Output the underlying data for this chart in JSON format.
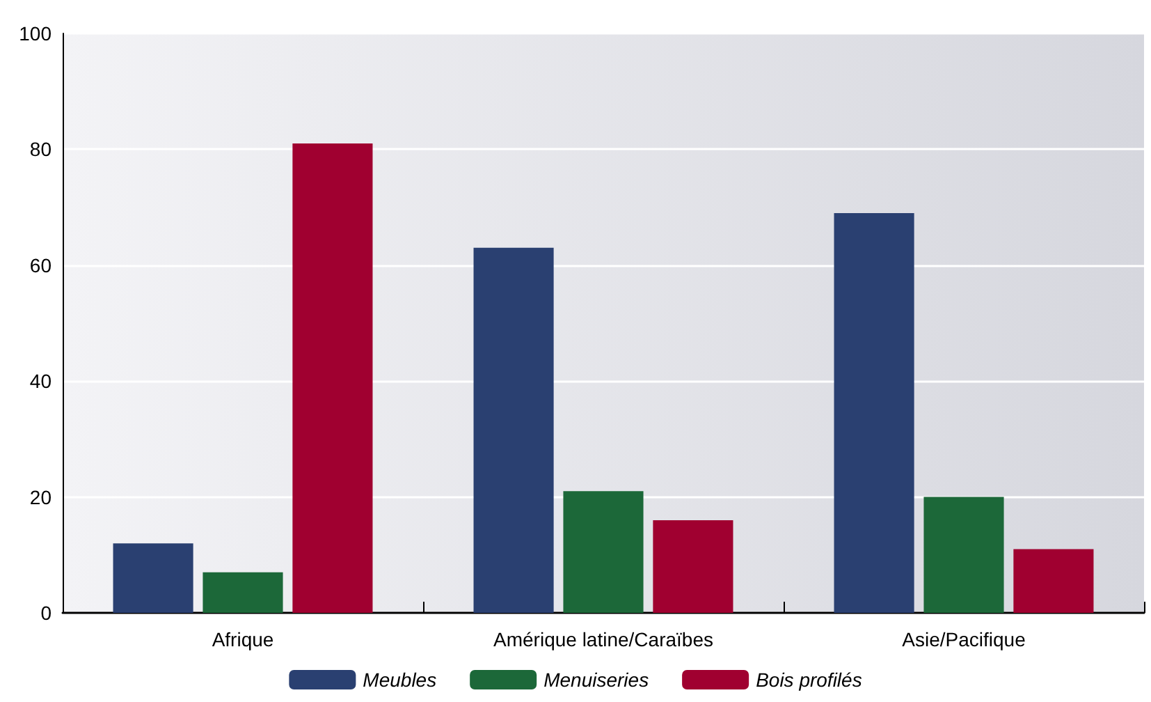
{
  "chart_data": {
    "type": "bar",
    "categories": [
      "Afrique",
      "Amérique latine/Caraïbes",
      "Asie/Pacifique"
    ],
    "series": [
      {
        "name": "Meubles",
        "color": "#2a4071",
        "values": [
          12,
          63,
          69
        ]
      },
      {
        "name": "Menuiseries",
        "color": "#1c6839",
        "values": [
          7,
          21,
          20
        ]
      },
      {
        "name": "Bois profilés",
        "color": "#a00030",
        "values": [
          81,
          16,
          11
        ]
      }
    ],
    "ylim": [
      0,
      100
    ],
    "yticks": [
      0,
      20,
      40,
      60,
      80,
      100
    ],
    "grid": "y",
    "legend": "bottom"
  }
}
